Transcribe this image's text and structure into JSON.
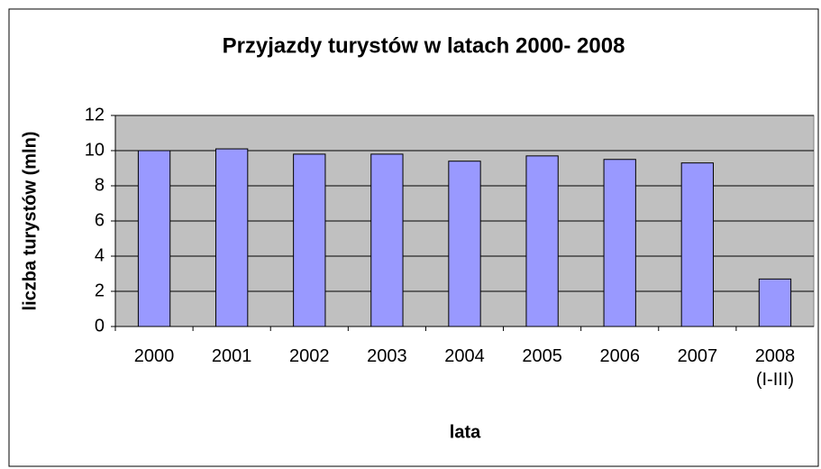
{
  "chart_data": {
    "type": "bar",
    "title": "Przyjazdy turystów w latach 2000- 2008",
    "x_label": "lata",
    "y_label": "liczba turystów (mln)",
    "categories": [
      "2000",
      "2001",
      "2002",
      "2003",
      "2004",
      "2005",
      "2006",
      "2007",
      "2008 (I-III)"
    ],
    "values": [
      10.0,
      10.1,
      9.8,
      9.8,
      9.4,
      9.7,
      9.5,
      9.3,
      2.7
    ],
    "color": "#9999ff",
    "ylim": [
      0,
      12
    ],
    "yticks": [
      0,
      2,
      4,
      6,
      8,
      10,
      12
    ],
    "grid": true
  }
}
